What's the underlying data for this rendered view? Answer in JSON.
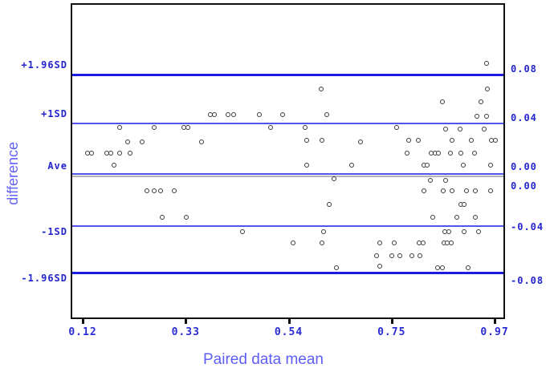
{
  "chart_data": {
    "type": "scatter",
    "title": "",
    "xlabel": "Paired data mean",
    "ylabel": "difference",
    "xlim": [
      0.095,
      0.992
    ],
    "ylim": [
      -0.114,
      0.134
    ],
    "grid": false,
    "legend": "none",
    "marker_style": "open-circle",
    "x_ticks": [
      "0.12",
      "0.33",
      "0.54",
      "0.75",
      "0.97"
    ],
    "reference_lines": [
      {
        "label": "+1.96SD",
        "right_label": "0.08",
        "value": 0.079,
        "style": "strong"
      },
      {
        "label": "+1SD",
        "right_label": "0.04",
        "value": 0.041,
        "style": "light"
      },
      {
        "label": "Ave",
        "right_label": "0.00",
        "value": 0.002,
        "style": "light"
      },
      {
        "label": "",
        "right_label": "0.00",
        "value": 0.0,
        "style": "zero"
      },
      {
        "label": "-1SD",
        "right_label": "-0.04",
        "value": -0.039,
        "style": "light"
      },
      {
        "label": "-1.96SD",
        "right_label": "-0.08",
        "value": -0.075,
        "style": "strong"
      }
    ],
    "points": [
      [
        0.95,
        0.088
      ],
      [
        0.609,
        0.068
      ],
      [
        0.952,
        0.068
      ],
      [
        0.859,
        0.058
      ],
      [
        0.938,
        0.058
      ],
      [
        0.38,
        0.048
      ],
      [
        0.388,
        0.048
      ],
      [
        0.417,
        0.048
      ],
      [
        0.428,
        0.048
      ],
      [
        0.481,
        0.048
      ],
      [
        0.529,
        0.048
      ],
      [
        0.62,
        0.048
      ],
      [
        0.93,
        0.047
      ],
      [
        0.95,
        0.047
      ],
      [
        0.193,
        0.038
      ],
      [
        0.264,
        0.038
      ],
      [
        0.325,
        0.038
      ],
      [
        0.334,
        0.038
      ],
      [
        0.504,
        0.038
      ],
      [
        0.576,
        0.038
      ],
      [
        0.765,
        0.038
      ],
      [
        0.866,
        0.037
      ],
      [
        0.895,
        0.037
      ],
      [
        0.945,
        0.037
      ],
      [
        0.209,
        0.027
      ],
      [
        0.239,
        0.027
      ],
      [
        0.362,
        0.027
      ],
      [
        0.579,
        0.028
      ],
      [
        0.61,
        0.028
      ],
      [
        0.69,
        0.027
      ],
      [
        0.789,
        0.028
      ],
      [
        0.809,
        0.028
      ],
      [
        0.879,
        0.028
      ],
      [
        0.919,
        0.028
      ],
      [
        0.96,
        0.028
      ],
      [
        0.968,
        0.028
      ],
      [
        0.127,
        0.018
      ],
      [
        0.135,
        0.018
      ],
      [
        0.166,
        0.018
      ],
      [
        0.175,
        0.018
      ],
      [
        0.193,
        0.018
      ],
      [
        0.214,
        0.018
      ],
      [
        0.786,
        0.018
      ],
      [
        0.836,
        0.018
      ],
      [
        0.844,
        0.018
      ],
      [
        0.851,
        0.018
      ],
      [
        0.875,
        0.018
      ],
      [
        0.897,
        0.018
      ],
      [
        0.925,
        0.018
      ],
      [
        0.181,
        0.009
      ],
      [
        0.579,
        0.009
      ],
      [
        0.672,
        0.009
      ],
      [
        0.821,
        0.009
      ],
      [
        0.827,
        0.009
      ],
      [
        0.902,
        0.009
      ],
      [
        0.958,
        0.009
      ],
      [
        0.635,
        -0.002
      ],
      [
        0.834,
        -0.003
      ],
      [
        0.866,
        -0.003
      ],
      [
        0.249,
        -0.011
      ],
      [
        0.264,
        -0.011
      ],
      [
        0.277,
        -0.011
      ],
      [
        0.306,
        -0.011
      ],
      [
        0.821,
        -0.011
      ],
      [
        0.861,
        -0.011
      ],
      [
        0.879,
        -0.011
      ],
      [
        0.909,
        -0.011
      ],
      [
        0.927,
        -0.011
      ],
      [
        0.958,
        -0.011
      ],
      [
        0.625,
        -0.022
      ],
      [
        0.897,
        -0.022
      ],
      [
        0.904,
        -0.022
      ],
      [
        0.281,
        -0.032
      ],
      [
        0.33,
        -0.032
      ],
      [
        0.839,
        -0.032
      ],
      [
        0.889,
        -0.032
      ],
      [
        0.927,
        -0.032
      ],
      [
        0.446,
        -0.043
      ],
      [
        0.614,
        -0.043
      ],
      [
        0.864,
        -0.043
      ],
      [
        0.872,
        -0.043
      ],
      [
        0.904,
        -0.043
      ],
      [
        0.933,
        -0.043
      ],
      [
        0.551,
        -0.052
      ],
      [
        0.61,
        -0.052
      ],
      [
        0.73,
        -0.052
      ],
      [
        0.76,
        -0.052
      ],
      [
        0.811,
        -0.052
      ],
      [
        0.819,
        -0.052
      ],
      [
        0.862,
        -0.052
      ],
      [
        0.869,
        -0.052
      ],
      [
        0.877,
        -0.052
      ],
      [
        0.723,
        -0.062
      ],
      [
        0.755,
        -0.062
      ],
      [
        0.771,
        -0.062
      ],
      [
        0.796,
        -0.062
      ],
      [
        0.813,
        -0.062
      ],
      [
        0.64,
        -0.071
      ],
      [
        0.73,
        -0.07
      ],
      [
        0.849,
        -0.071
      ],
      [
        0.859,
        -0.071
      ],
      [
        0.912,
        -0.071
      ]
    ],
    "colors": {
      "strong_line": "#1b1be6",
      "light_line": "#5353ee",
      "zero_line": "#b3b3b3",
      "tick_label_blue": "#2424cd",
      "axis_title_blue": "#5d5df6",
      "marker_outline": "#3a3a3a",
      "plot_border": "#111111"
    }
  }
}
